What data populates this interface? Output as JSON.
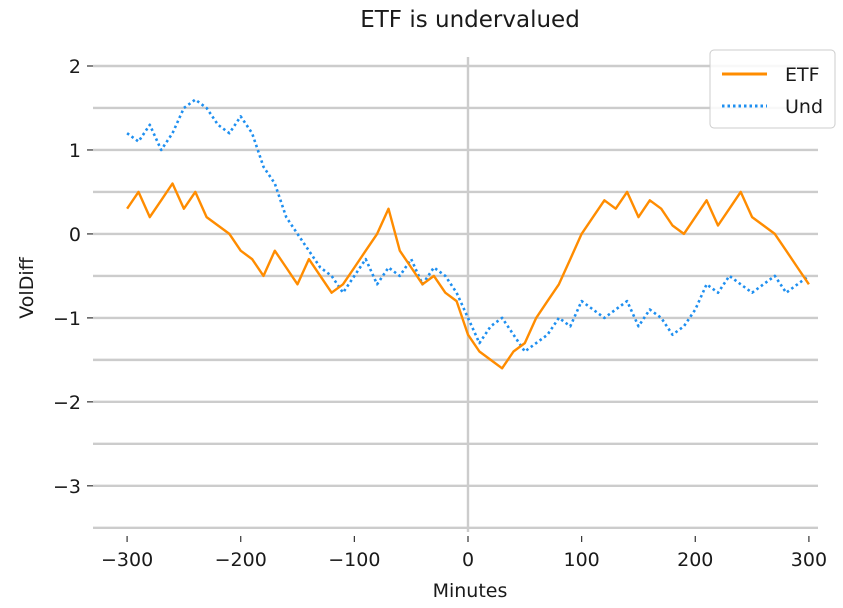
{
  "chart_data": {
    "type": "line",
    "title": "ETF is undervalued",
    "xlabel": "Minutes",
    "ylabel": "VolDiff",
    "xlim": [
      -330,
      330
    ],
    "ylim": [
      -3.55,
      2.25
    ],
    "xticks": [
      -300,
      -200,
      -100,
      0,
      100,
      200,
      300
    ],
    "xtick_labels": [
      "−300",
      "−200",
      "−100",
      "0",
      "100",
      "200",
      "300"
    ],
    "yticks": [
      2,
      1,
      0,
      -1,
      -2,
      -3
    ],
    "ytick_labels": [
      "2",
      "1",
      "0",
      "−1",
      "−2",
      "−3"
    ],
    "grid": "horizontal",
    "reference_line_x": 0,
    "legend_position": "top-right",
    "series": [
      {
        "name": "ETF",
        "color": "#ff8c00",
        "style": "solid",
        "x": [
          -300,
          -290,
          -280,
          -270,
          -260,
          -250,
          -240,
          -230,
          -220,
          -210,
          -200,
          -190,
          -180,
          -170,
          -160,
          -150,
          -140,
          -130,
          -120,
          -110,
          -100,
          -90,
          -80,
          -70,
          -60,
          -50,
          -40,
          -30,
          -20,
          -10,
          0,
          10,
          20,
          30,
          40,
          50,
          60,
          70,
          80,
          90,
          100,
          110,
          120,
          130,
          140,
          150,
          160,
          170,
          180,
          190,
          200,
          210,
          220,
          230,
          240,
          250,
          260,
          270,
          280,
          290,
          300
        ],
        "y": [
          0.3,
          0.5,
          0.2,
          0.4,
          0.6,
          0.3,
          0.5,
          0.2,
          0.1,
          0.0,
          -0.2,
          -0.3,
          -0.5,
          -0.2,
          -0.4,
          -0.6,
          -0.3,
          -0.5,
          -0.7,
          -0.6,
          -0.4,
          -0.2,
          0.0,
          0.3,
          -0.2,
          -0.4,
          -0.6,
          -0.5,
          -0.7,
          -0.8,
          -1.2,
          -1.4,
          -1.5,
          -1.6,
          -1.4,
          -1.3,
          -1.0,
          -0.8,
          -0.6,
          -0.3,
          0.0,
          0.2,
          0.4,
          0.3,
          0.5,
          0.2,
          0.4,
          0.3,
          0.1,
          0.0,
          0.2,
          0.4,
          0.1,
          0.3,
          0.5,
          0.2,
          0.1,
          0.0,
          -0.2,
          -0.4,
          -0.6
        ]
      },
      {
        "name": "Und",
        "color": "#1e8ff0",
        "style": "dotted",
        "x": [
          -300,
          -290,
          -280,
          -270,
          -260,
          -250,
          -240,
          -230,
          -220,
          -210,
          -200,
          -190,
          -180,
          -170,
          -160,
          -150,
          -140,
          -130,
          -120,
          -110,
          -100,
          -90,
          -80,
          -70,
          -60,
          -50,
          -40,
          -30,
          -20,
          -10,
          0,
          10,
          20,
          30,
          40,
          50,
          60,
          70,
          80,
          90,
          100,
          110,
          120,
          130,
          140,
          150,
          160,
          170,
          180,
          190,
          200,
          210,
          220,
          230,
          240,
          250,
          260,
          270,
          280,
          290,
          300
        ],
        "y": [
          1.2,
          1.1,
          1.3,
          1.0,
          1.2,
          1.5,
          1.6,
          1.5,
          1.3,
          1.2,
          1.4,
          1.2,
          0.8,
          0.6,
          0.2,
          0.0,
          -0.2,
          -0.4,
          -0.5,
          -0.7,
          -0.5,
          -0.3,
          -0.6,
          -0.4,
          -0.5,
          -0.3,
          -0.6,
          -0.4,
          -0.5,
          -0.7,
          -1.0,
          -1.3,
          -1.1,
          -1.0,
          -1.2,
          -1.4,
          -1.3,
          -1.2,
          -1.0,
          -1.1,
          -0.8,
          -0.9,
          -1.0,
          -0.9,
          -0.8,
          -1.1,
          -0.9,
          -1.0,
          -1.2,
          -1.1,
          -0.9,
          -0.6,
          -0.7,
          -0.5,
          -0.6,
          -0.7,
          -0.6,
          -0.5,
          -0.7,
          -0.6,
          -0.5
        ]
      }
    ]
  }
}
